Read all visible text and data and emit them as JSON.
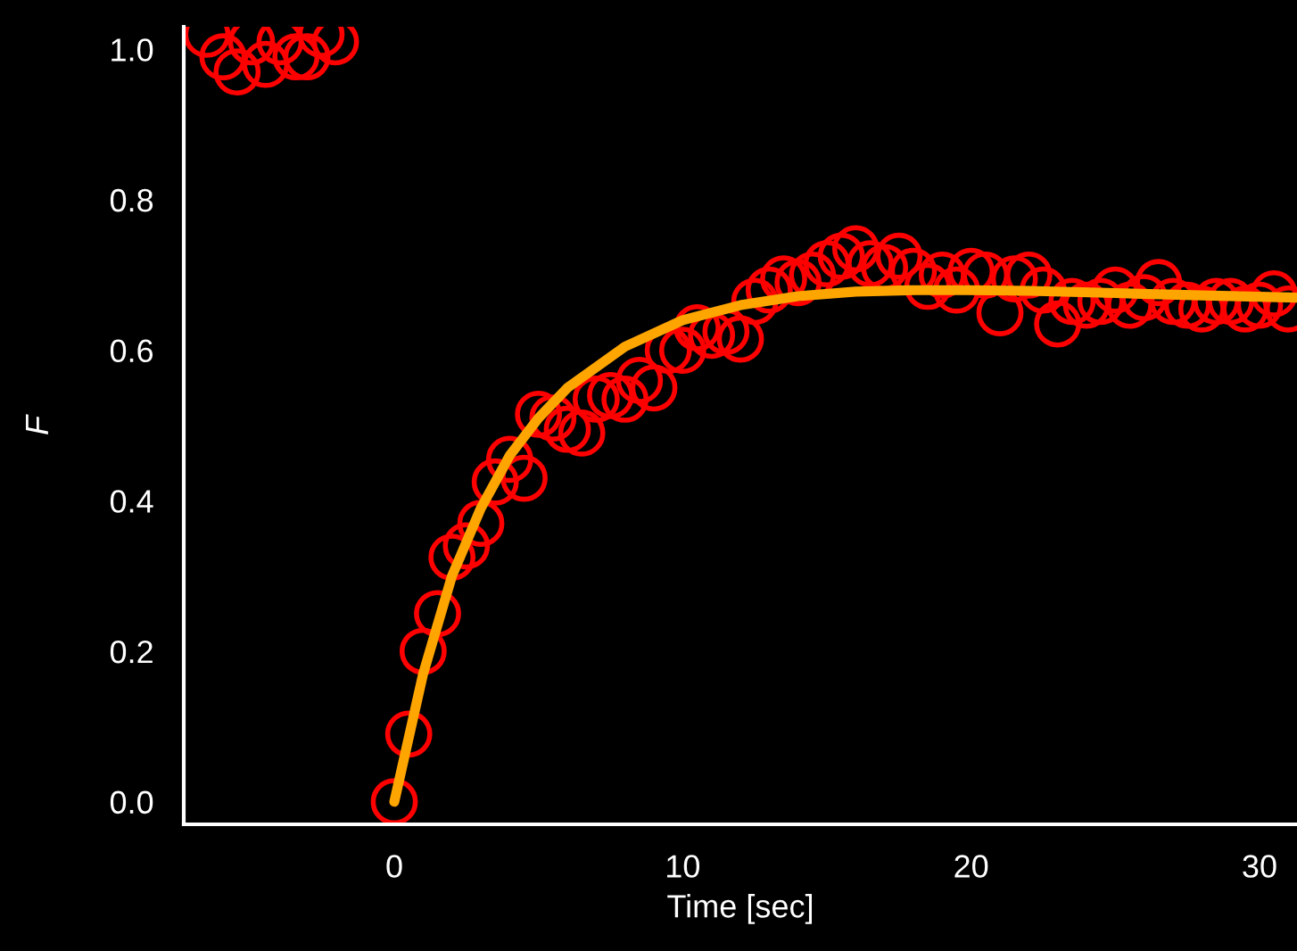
{
  "chart_data": {
    "type": "scatter",
    "xlabel": "Time [sec]",
    "ylabel": "F",
    "xlim": [
      -7.3,
      31.3
    ],
    "ylim": [
      -0.03,
      1.03
    ],
    "xticks": [
      0,
      10,
      20,
      30
    ],
    "yticks": [
      {
        "value": 0,
        "label": "0.0"
      },
      {
        "value": 0.2,
        "label": "0.2"
      },
      {
        "value": 0.4,
        "label": "0.4"
      },
      {
        "value": 0.6,
        "label": "0.6"
      },
      {
        "value": 0.8,
        "label": "0.8"
      },
      {
        "value": 1,
        "label": "1.0"
      }
    ],
    "grid": false,
    "legend": false,
    "marker": "circle",
    "series": [
      {
        "type": "scatter",
        "color": "#ff0000",
        "x": [
          -6.5,
          -5.94,
          -5.45,
          -4.95,
          -4.46,
          -3.96,
          -3.41,
          -3.03,
          -2.54,
          -2.04,
          0,
          0.5,
          1,
          1.5,
          2,
          2.5,
          3,
          3.5,
          4,
          4.5,
          5,
          5.5,
          6,
          6.5,
          7,
          7.5,
          8,
          8.5,
          9,
          9.5,
          10,
          10.5,
          11,
          11.5,
          12,
          12.5,
          13,
          13.5,
          14,
          14.5,
          15,
          15.5,
          16,
          16.5,
          17,
          17.5,
          18,
          18.5,
          19,
          19.5,
          20,
          20.5,
          21,
          21.5,
          22,
          22.5,
          23,
          23.5,
          24,
          24.5,
          25,
          25.5,
          26,
          26.5,
          27,
          27.5,
          28,
          28.5,
          29,
          29.5,
          30,
          30.5,
          31
        ],
        "values": [
          1.02,
          0.99,
          0.97,
          1.01,
          0.98,
          1.01,
          0.99,
          0.99,
          1.02,
          1.01,
          0.0,
          0.09,
          0.2,
          0.25,
          0.325,
          0.34,
          0.37,
          0.425,
          0.455,
          0.43,
          0.515,
          0.51,
          0.495,
          0.49,
          0.535,
          0.54,
          0.535,
          0.56,
          0.55,
          0.6,
          0.6,
          0.63,
          0.62,
          0.625,
          0.615,
          0.665,
          0.68,
          0.695,
          0.69,
          0.7,
          0.715,
          0.725,
          0.735,
          0.715,
          0.71,
          0.725,
          0.705,
          0.685,
          0.7,
          0.68,
          0.705,
          0.7,
          0.65,
          0.695,
          0.7,
          0.68,
          0.635,
          0.665,
          0.66,
          0.665,
          0.68,
          0.66,
          0.67,
          0.69,
          0.665,
          0.66,
          0.655,
          0.665,
          0.665,
          0.655,
          0.66,
          0.675,
          0.655
        ]
      },
      {
        "type": "line",
        "color": "#ffa500",
        "marker": "none",
        "line_style": "solid",
        "x": [
          0,
          1,
          2,
          3,
          4,
          5,
          6,
          8,
          10,
          12,
          14,
          16,
          18,
          20,
          22,
          25,
          28,
          31.3
        ],
        "values": [
          0,
          0.17,
          0.3,
          0.39,
          0.46,
          0.51,
          0.55,
          0.605,
          0.64,
          0.66,
          0.672,
          0.678,
          0.68,
          0.68,
          0.679,
          0.676,
          0.673,
          0.67
        ]
      }
    ]
  }
}
